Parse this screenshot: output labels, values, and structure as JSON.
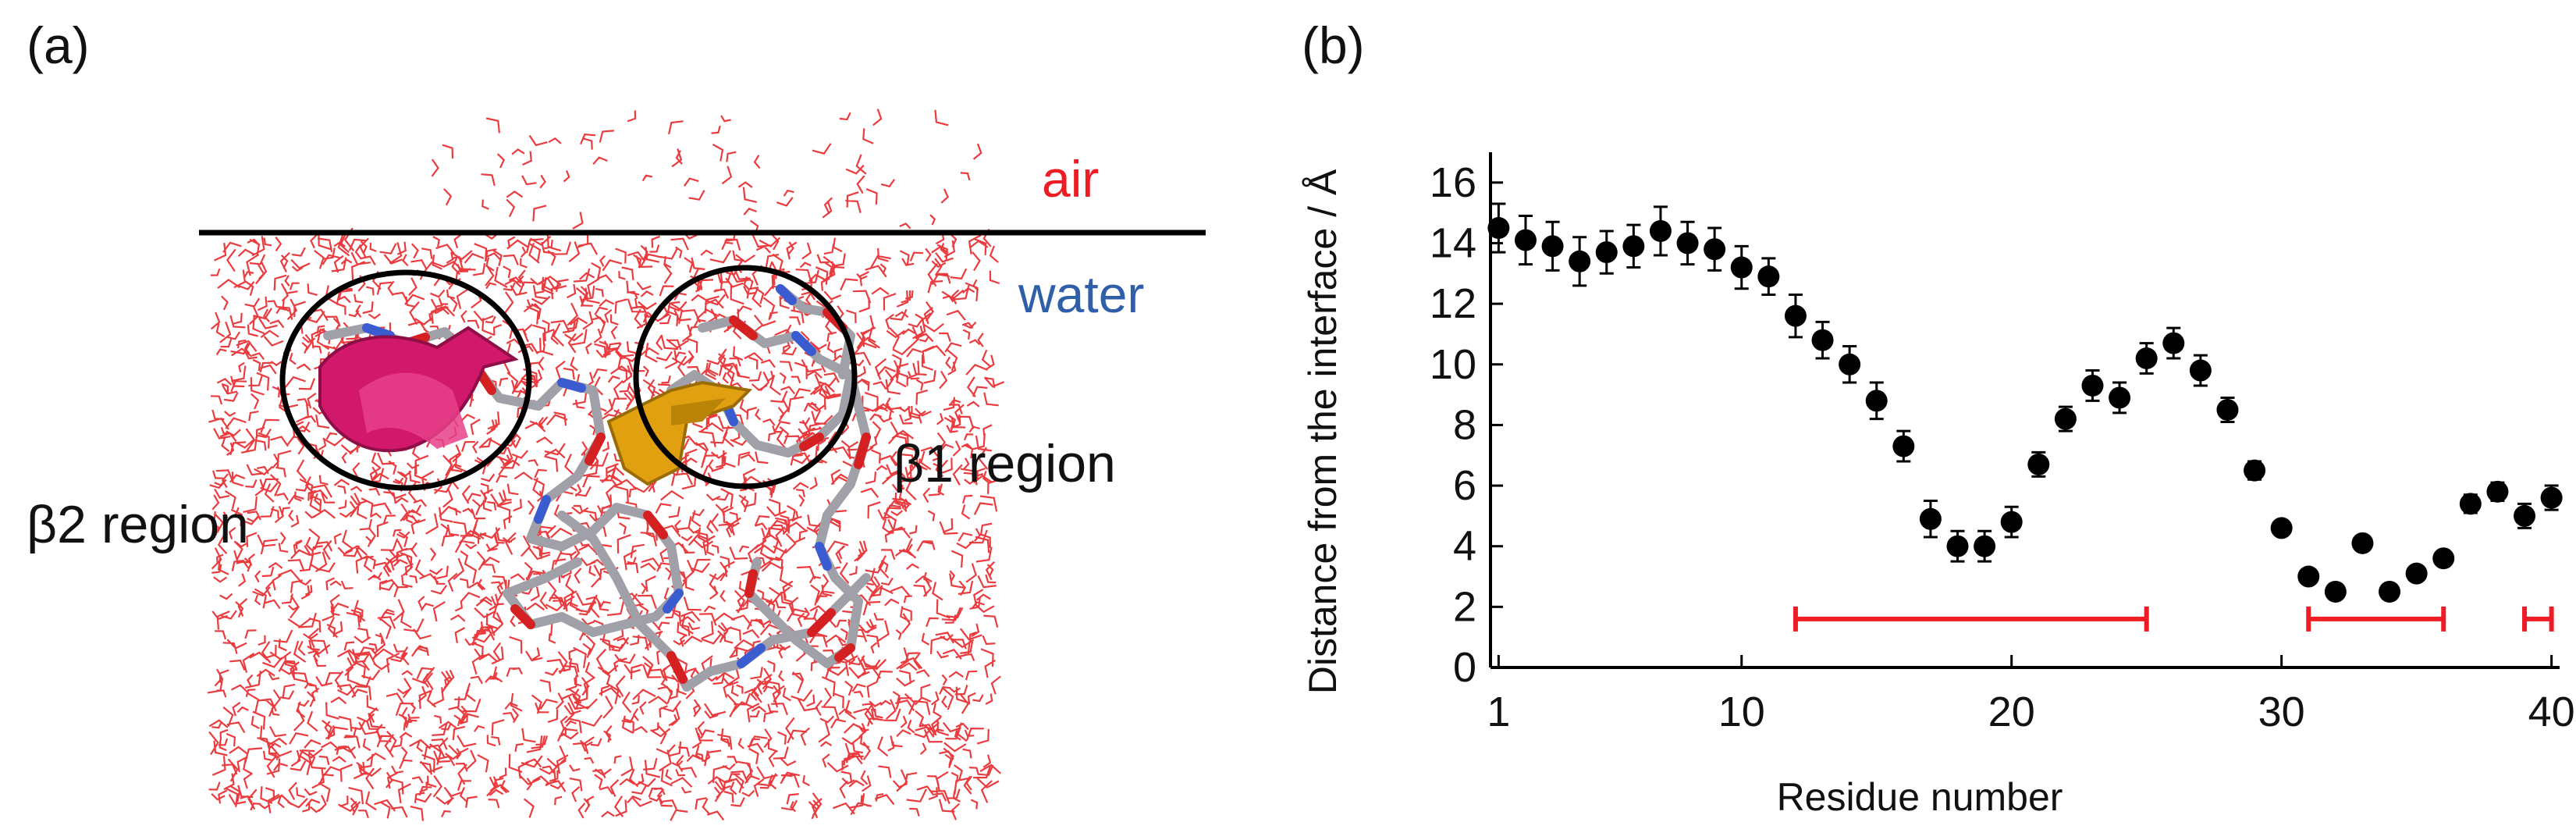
{
  "panel_a": {
    "label": "(a)",
    "air_label": "air",
    "water_label": "water",
    "beta1_label": "β1 region",
    "beta2_label": "β2 region",
    "colors": {
      "air": "#ee1c25",
      "water": "#2f5fa8",
      "water_molecules": "#e8262a",
      "beta2_sheet": "#d2186a",
      "beta1_sheet": "#e0a010",
      "peptide_carbon": "#a0a0a8",
      "interface_line": "#000000"
    }
  },
  "panel_b": {
    "label": "(b)"
  },
  "chart_data": {
    "type": "scatter",
    "title": "",
    "xlabel": "Residue number",
    "ylabel": "Distance from the interface / Å",
    "xlim": [
      0.7,
      40.3
    ],
    "ylim": [
      0,
      17
    ],
    "xticks": [
      1,
      10,
      20,
      30,
      40
    ],
    "yticks": [
      0,
      2,
      4,
      6,
      8,
      10,
      12,
      14,
      16
    ],
    "grid": false,
    "series": [
      {
        "name": "distance",
        "color": "#000000",
        "x": [
          1,
          2,
          3,
          4,
          5,
          6,
          7,
          8,
          9,
          10,
          11,
          12,
          13,
          14,
          15,
          16,
          17,
          18,
          19,
          20,
          21,
          22,
          23,
          24,
          25,
          26,
          27,
          28,
          29,
          30,
          31,
          32,
          33,
          34,
          35,
          36,
          37,
          38,
          39,
          40
        ],
        "y": [
          14.5,
          14.1,
          13.9,
          13.4,
          13.7,
          13.9,
          14.4,
          14.0,
          13.8,
          13.2,
          12.9,
          11.6,
          10.8,
          10.0,
          8.8,
          7.3,
          4.9,
          4.0,
          4.0,
          4.8,
          6.7,
          8.2,
          9.3,
          8.9,
          10.2,
          10.7,
          9.8,
          8.5,
          6.5,
          4.6,
          3.0,
          2.5,
          4.1,
          2.5,
          3.1,
          3.6,
          5.4,
          5.8,
          5.0,
          5.6
        ],
        "err": [
          0.8,
          0.8,
          0.8,
          0.8,
          0.7,
          0.7,
          0.8,
          0.7,
          0.7,
          0.7,
          0.6,
          0.7,
          0.6,
          0.6,
          0.6,
          0.5,
          0.6,
          0.5,
          0.5,
          0.5,
          0.4,
          0.4,
          0.5,
          0.5,
          0.5,
          0.5,
          0.5,
          0.4,
          0.3,
          0.2,
          0.2,
          0.2,
          0.2,
          0.2,
          0.2,
          0.2,
          0.3,
          0.3,
          0.4,
          0.4
        ]
      }
    ],
    "ranges": {
      "color": "#ee1c25",
      "y": 1.6,
      "spans": [
        [
          12,
          25
        ],
        [
          31,
          36
        ],
        [
          39,
          40
        ]
      ]
    }
  }
}
